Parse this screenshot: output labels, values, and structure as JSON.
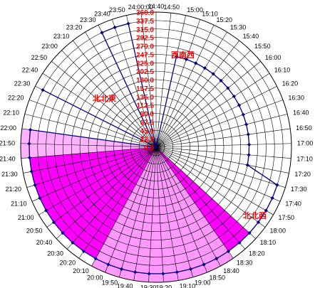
{
  "chart_data": {
    "type": "radar",
    "categories": [
      "14:40",
      "14:50",
      "15:00",
      "15:10",
      "15:20",
      "15:30",
      "15:40",
      "15:50",
      "16:00",
      "16:10",
      "16:20",
      "16:30",
      "16:40",
      "16:50",
      "17:00",
      "17:10",
      "17:20",
      "17:30",
      "17:40",
      "17:50",
      "18:00",
      "18:10",
      "18:20",
      "18:30",
      "18:40",
      "18:50",
      "19:00",
      "19:10",
      "19:20",
      "19:30",
      "19:40",
      "19:50",
      "20:00",
      "20:10",
      "20:20",
      "20:30",
      "20:40",
      "20:50",
      "21:00",
      "21:10",
      "21:20",
      "21:30",
      "21:40",
      "21:50",
      "22:00",
      "22:10",
      "22:20",
      "22:30",
      "22:40",
      "22:50",
      "23:00",
      "23:10",
      "23:20",
      "23:30",
      "23:40",
      "23:50",
      "24:00:00"
    ],
    "r_tick_labels": [
      "0.0",
      "22.5",
      "45.0",
      "67.5",
      "90.0",
      "112.5",
      "135.0",
      "157.5",
      "180.0",
      "202.5",
      "225.0",
      "247.5",
      "270.0",
      "292.5",
      "315.0",
      "337.5",
      "360.0"
    ],
    "rlim": [
      0,
      360
    ],
    "grid": true,
    "series": [
      {
        "values": [
          0,
          0,
          0,
          0,
          0,
          0,
          0,
          0,
          0,
          0,
          0,
          0,
          0,
          0,
          0,
          0,
          0,
          0,
          0,
          0,
          0,
          337.5,
          337.5,
          337.5,
          337.5,
          337.5,
          337.5,
          337.5,
          337.5,
          337.5,
          337.5,
          337.5,
          337.5,
          337.5,
          337.5,
          337.5,
          337.5,
          337.5,
          337.5,
          337.5,
          337.5,
          337.5,
          337.5,
          337.5,
          337.5,
          0,
          0,
          0,
          0,
          0,
          0,
          0,
          0,
          0,
          0,
          0,
          0
        ],
        "color": "#ff00ff",
        "style": "area"
      },
      {
        "values": [
          0,
          0,
          0,
          0,
          0,
          0,
          0,
          0,
          0,
          0,
          0,
          0,
          0,
          0,
          0,
          0,
          0,
          0,
          0,
          0,
          0,
          0,
          0,
          360,
          360,
          360,
          360,
          360,
          360,
          360,
          360,
          360,
          360,
          360,
          0,
          0,
          0,
          0,
          0,
          0,
          0,
          0,
          0,
          0,
          0,
          0,
          0,
          0,
          0,
          0,
          0,
          0,
          0,
          0,
          0,
          0,
          0
        ],
        "color": "#ff99ff",
        "style": "area"
      },
      {
        "values": [
          0,
          0,
          0,
          0,
          0,
          0,
          0,
          0,
          0,
          0,
          0,
          0,
          0,
          0,
          0,
          0,
          0,
          0,
          0,
          0,
          0,
          0,
          0,
          0,
          0,
          0,
          0,
          0,
          0,
          0,
          0,
          0,
          0,
          0,
          0,
          0,
          0,
          0,
          0,
          0,
          0,
          0,
          360,
          360,
          360,
          0,
          0,
          0,
          0,
          0,
          0,
          0,
          0,
          0,
          0,
          0,
          0
        ],
        "color": "#ffb3ff",
        "style": "area"
      },
      {
        "values": [
          0,
          0,
          247.5,
          247.5,
          247.5,
          247.5,
          247.5,
          247.5,
          247.5,
          247.5,
          247.5,
          247.5,
          247.5,
          247.5,
          247.5,
          247.5,
          247.5,
          337.5,
          337.5,
          337.5,
          337.5,
          337.5,
          337.5,
          337.5,
          337.5,
          337.5,
          337.5,
          337.5,
          337.5,
          337.5,
          337.5,
          337.5,
          337.5,
          337.5,
          337.5,
          337.5,
          337.5,
          337.5,
          337.5,
          337.5,
          337.5,
          337.5,
          337.5,
          337.5,
          337.5,
          0,
          0,
          337.5,
          0,
          0,
          0,
          0,
          0,
          337.5,
          337.5,
          337.5,
          0
        ],
        "color": "#000080",
        "style": "line-markers"
      }
    ],
    "annotations": [
      "西南西",
      "北北東",
      "北北西"
    ],
    "colors": {
      "grid": "#000000",
      "r_labels": "#ff0000",
      "annotations": "#ff0000"
    }
  }
}
